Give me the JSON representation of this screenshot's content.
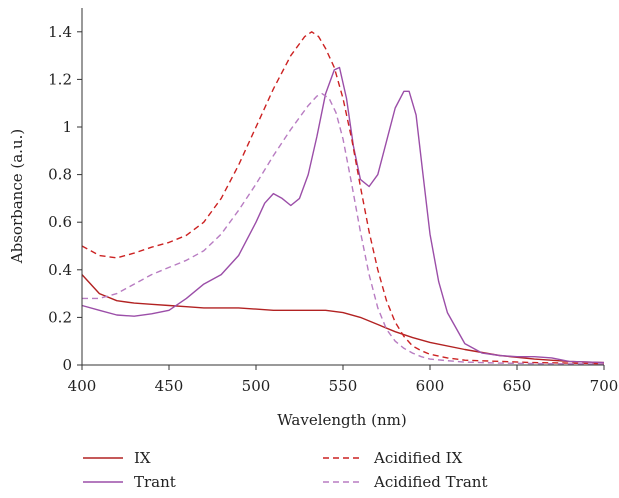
{
  "chart_data": {
    "type": "line",
    "title": "",
    "xlabel": "Wavelength (nm)",
    "ylabel": "Absorbance (a.u.)",
    "xlim": [
      400,
      700
    ],
    "ylim": [
      0,
      1.5
    ],
    "x_ticks": [
      400,
      450,
      500,
      550,
      600,
      650,
      700
    ],
    "x_tick_labels": [
      "400",
      "450",
      "500",
      "550",
      "600",
      "650",
      "700"
    ],
    "y_ticks": [
      0,
      0.2,
      0.4,
      0.6,
      0.8,
      1,
      1.2,
      1.4
    ],
    "y_tick_labels": [
      "0",
      "0.2",
      "0.4",
      "0.6",
      "0.8",
      "1",
      "1.2",
      "1.4"
    ],
    "grid": false,
    "legend_position": "bottom",
    "series": [
      {
        "name": "IX",
        "color": "#b22222",
        "dash": "solid",
        "x": [
          400,
          410,
          420,
          430,
          440,
          450,
          460,
          470,
          480,
          490,
          500,
          510,
          520,
          530,
          540,
          550,
          560,
          570,
          580,
          590,
          600,
          620,
          640,
          660,
          680,
          700
        ],
        "y": [
          0.38,
          0.3,
          0.27,
          0.26,
          0.255,
          0.25,
          0.245,
          0.24,
          0.24,
          0.24,
          0.235,
          0.23,
          0.23,
          0.23,
          0.23,
          0.22,
          0.2,
          0.17,
          0.14,
          0.115,
          0.095,
          0.065,
          0.04,
          0.025,
          0.015,
          0.01
        ]
      },
      {
        "name": "Trant",
        "color": "#9b4ea8",
        "dash": "solid",
        "x": [
          400,
          410,
          420,
          430,
          440,
          450,
          460,
          470,
          480,
          490,
          500,
          505,
          510,
          515,
          520,
          525,
          530,
          535,
          540,
          545,
          548,
          552,
          556,
          560,
          565,
          570,
          575,
          580,
          585,
          588,
          592,
          596,
          600,
          605,
          610,
          620,
          630,
          640,
          650,
          660,
          670,
          680,
          700
        ],
        "y": [
          0.25,
          0.23,
          0.21,
          0.205,
          0.215,
          0.23,
          0.28,
          0.34,
          0.38,
          0.46,
          0.6,
          0.68,
          0.72,
          0.7,
          0.67,
          0.7,
          0.8,
          0.96,
          1.14,
          1.24,
          1.25,
          1.12,
          0.92,
          0.78,
          0.75,
          0.8,
          0.94,
          1.08,
          1.15,
          1.15,
          1.05,
          0.8,
          0.55,
          0.35,
          0.22,
          0.09,
          0.05,
          0.04,
          0.035,
          0.035,
          0.03,
          0.015,
          0.01
        ]
      },
      {
        "name": "Acidified IX",
        "color": "#cc2222",
        "dash": "dashed",
        "x": [
          400,
          410,
          420,
          430,
          440,
          450,
          460,
          470,
          480,
          490,
          500,
          510,
          520,
          528,
          532,
          536,
          540,
          545,
          550,
          555,
          560,
          565,
          570,
          575,
          580,
          585,
          590,
          595,
          600,
          610,
          620,
          640,
          660,
          680,
          700
        ],
        "y": [
          0.5,
          0.46,
          0.45,
          0.47,
          0.495,
          0.515,
          0.545,
          0.6,
          0.7,
          0.84,
          1.0,
          1.16,
          1.3,
          1.38,
          1.4,
          1.38,
          1.33,
          1.25,
          1.12,
          0.95,
          0.75,
          0.56,
          0.4,
          0.27,
          0.18,
          0.12,
          0.08,
          0.06,
          0.045,
          0.03,
          0.02,
          0.015,
          0.01,
          0.008,
          0.005
        ]
      },
      {
        "name": "Acidified Trant",
        "color": "#b87cc2",
        "dash": "dashed",
        "x": [
          400,
          410,
          420,
          430,
          440,
          450,
          460,
          470,
          480,
          490,
          500,
          510,
          520,
          530,
          535,
          538,
          542,
          546,
          550,
          555,
          560,
          565,
          570,
          575,
          580,
          585,
          590,
          595,
          600,
          610,
          620,
          640,
          660,
          680,
          700
        ],
        "y": [
          0.28,
          0.28,
          0.3,
          0.34,
          0.38,
          0.41,
          0.44,
          0.48,
          0.55,
          0.65,
          0.76,
          0.88,
          0.99,
          1.09,
          1.13,
          1.14,
          1.12,
          1.06,
          0.95,
          0.76,
          0.56,
          0.38,
          0.24,
          0.15,
          0.1,
          0.07,
          0.05,
          0.035,
          0.025,
          0.018,
          0.012,
          0.008,
          0.006,
          0.005,
          0.004
        ]
      }
    ]
  }
}
